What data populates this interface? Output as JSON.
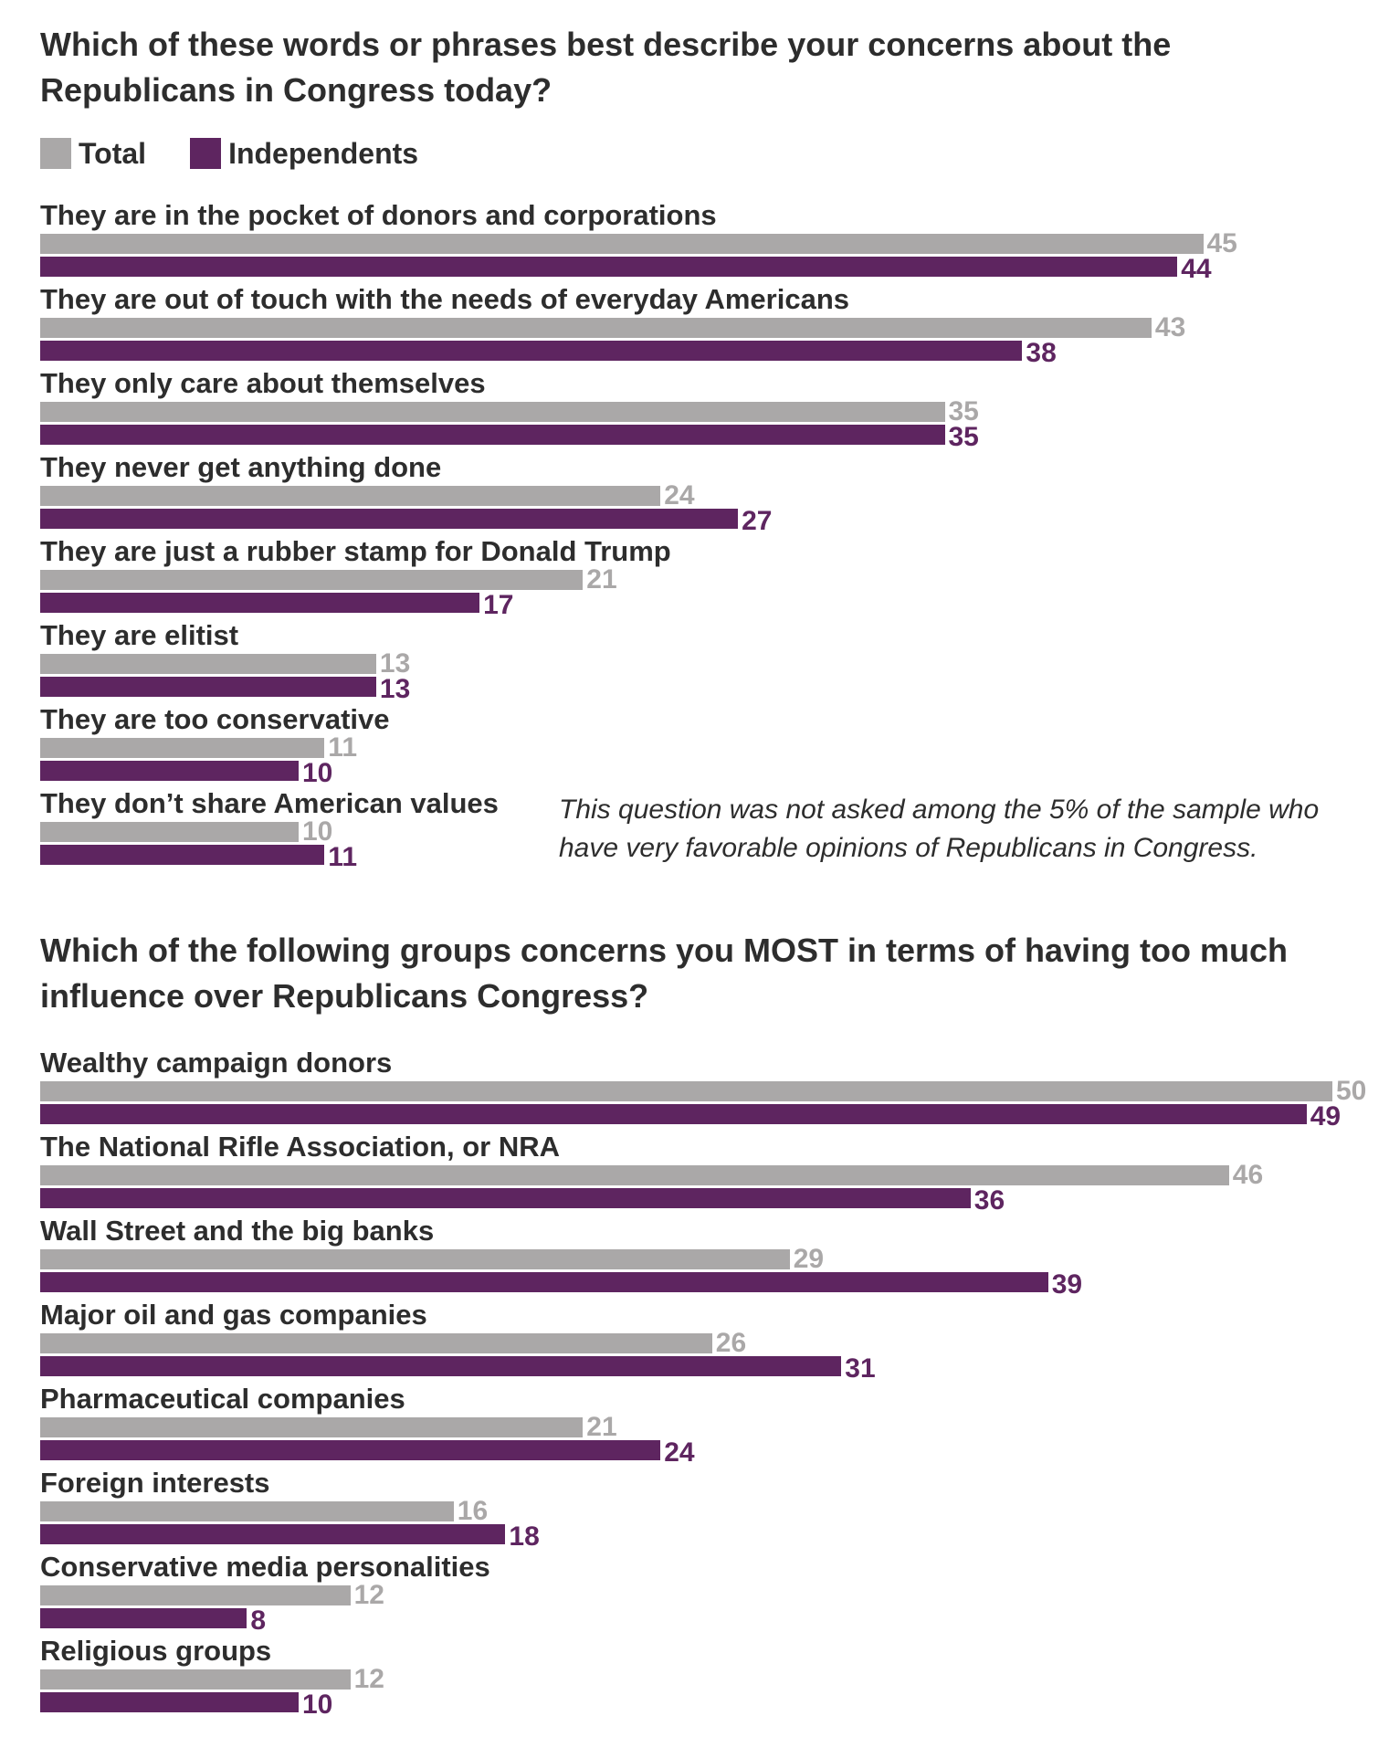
{
  "colors": {
    "total": "#aaa8a8",
    "independents": "#5e2560"
  },
  "legend": {
    "total": "Total",
    "independents": "Independents"
  },
  "chart_data": [
    {
      "type": "bar",
      "title": "Which of these words or phrases best describe your concerns about the Republicans in Congress today?",
      "categories": [
        "They are in the pocket of donors and corporations",
        "They are out of touch with the needs of everyday Americans",
        "They only care about themselves",
        "They never get anything done",
        "They are just a rubber stamp for Donald Trump",
        "They are elitist",
        "They are too conservative",
        "They don’t share American values"
      ],
      "series": [
        {
          "name": "Total",
          "values": [
            45,
            43,
            35,
            24,
            21,
            13,
            11,
            10
          ]
        },
        {
          "name": "Independents",
          "values": [
            44,
            38,
            35,
            27,
            17,
            13,
            10,
            11
          ]
        }
      ],
      "xlim": [
        0,
        45
      ],
      "legend": "top-left",
      "grid": false,
      "note": "This question was not asked among the 5% of the sample who have very favorable opinions of Republicans in Congress."
    },
    {
      "type": "bar",
      "title": "Which of the following groups concerns you MOST in terms of having too much influence over Republicans Congress?",
      "categories": [
        "Wealthy campaign donors",
        "The National Rifle Association, or NRA",
        "Wall Street and the big banks",
        "Major oil and gas companies",
        "Pharmaceutical companies",
        "Foreign interests",
        "Conservative media personalities",
        "Religious groups"
      ],
      "series": [
        {
          "name": "Total",
          "values": [
            50,
            46,
            29,
            26,
            21,
            16,
            12,
            12
          ]
        },
        {
          "name": "Independents",
          "values": [
            49,
            36,
            39,
            31,
            24,
            18,
            8,
            10
          ]
        }
      ],
      "xlim": [
        0,
        50
      ],
      "legend": "none",
      "grid": false
    }
  ]
}
